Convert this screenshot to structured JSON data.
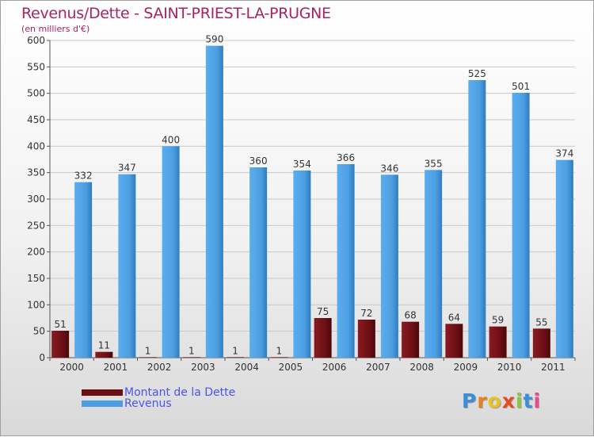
{
  "chart_data": {
    "type": "bar",
    "title": "Revenus/Dette - SAINT-PRIEST-LA-PRUGNE",
    "subtitle": "(en milliers d'€)",
    "categories": [
      "2000",
      "2001",
      "2002",
      "2003",
      "2004",
      "2005",
      "2006",
      "2007",
      "2008",
      "2009",
      "2010",
      "2011"
    ],
    "series": [
      {
        "name": "Montant de la Dette",
        "color": "#6b0f14",
        "values": [
          51,
          11,
          1,
          1,
          1,
          1,
          75,
          72,
          68,
          64,
          59,
          55
        ]
      },
      {
        "name": "Revenus",
        "color": "#4c9ee0",
        "values": [
          332,
          347,
          400,
          590,
          360,
          354,
          366,
          346,
          355,
          525,
          501,
          374
        ]
      }
    ],
    "yticks": [
      0,
      50,
      100,
      150,
      200,
      250,
      300,
      350,
      400,
      450,
      500,
      550,
      600
    ],
    "ylim": [
      0,
      600
    ],
    "grid": true,
    "legend_position": "bottom-left"
  },
  "brand": {
    "letters": [
      "P",
      "r",
      "o",
      "x",
      "i",
      "t",
      "i"
    ],
    "colors": [
      "#3a8fd8",
      "#e8801e",
      "#e8c21e",
      "#e84a1e",
      "#8cc63e",
      "#3a8fd8",
      "#e84a8e"
    ]
  }
}
